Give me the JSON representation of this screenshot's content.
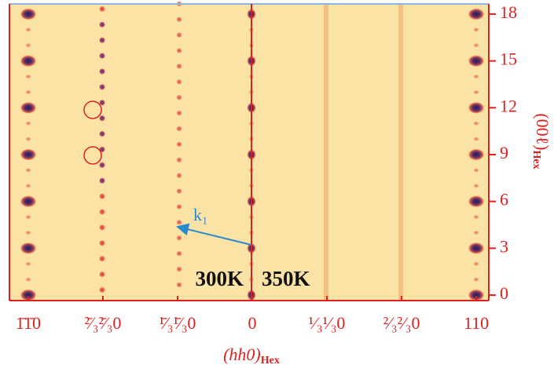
{
  "chart_data": {
    "type": "diffraction-map",
    "x_label": "(hh0)",
    "x_label_sub": "Hex",
    "y_label": "(00ℓ)",
    "y_label_sub": "Hex",
    "xlim": [
      -1.084,
      1.056
    ],
    "xticks": [
      {
        "value": -1,
        "label": "1̄1̄0"
      },
      {
        "value": -0.6667,
        "label": "²̄⁄₃²̄⁄₃0"
      },
      {
        "value": -0.3333,
        "label": "¹̄⁄₃¹̄⁄₃0"
      },
      0,
      {
        "value": 0.3333,
        "label": "¹⁄₃¹⁄₃0"
      },
      {
        "value": 0.6667,
        "label": "²⁄₃²⁄₃0"
      },
      {
        "value": 1,
        "label": "110"
      }
    ],
    "ylim": [
      -0.35,
      18.65
    ],
    "yticks": [
      0,
      3,
      6,
      9,
      12,
      15,
      18
    ],
    "annotations": {
      "left_temperature": "300K",
      "right_temperature": "350K",
      "vector": "k₁"
    }
  }
}
